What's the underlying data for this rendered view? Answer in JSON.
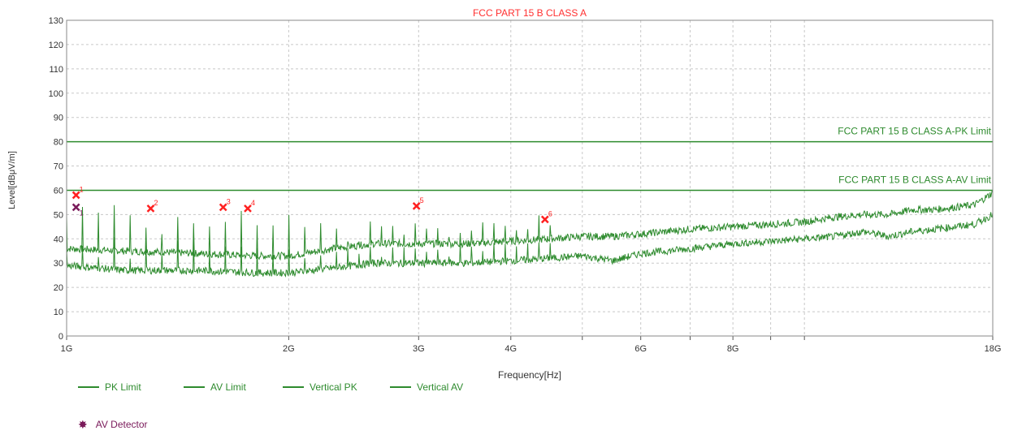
{
  "chart_data": {
    "type": "line",
    "title": "FCC PART 15 B CLASS A",
    "xlabel": "Frequency[Hz]",
    "ylabel": "Level[dBμV/m]",
    "x_scale": "log",
    "xlim_hz": [
      1000000000,
      18000000000
    ],
    "ylim": [
      0,
      130
    ],
    "yticks": [
      0,
      10,
      20,
      30,
      40,
      50,
      60,
      70,
      80,
      90,
      100,
      110,
      120,
      130
    ],
    "xticks": [
      {
        "value_hz": 1000000000,
        "label": "1G"
      },
      {
        "value_hz": 2000000000,
        "label": "2G"
      },
      {
        "value_hz": 3000000000,
        "label": "3G"
      },
      {
        "value_hz": 4000000000,
        "label": "4G"
      },
      {
        "value_hz": 6000000000,
        "label": "6G"
      },
      {
        "value_hz": 8000000000,
        "label": "8G"
      },
      {
        "value_hz": 18000000000,
        "label": "18G"
      }
    ],
    "minor_gridlines_hz": [
      5000000000,
      7000000000,
      9000000000,
      10000000000
    ],
    "grid": true,
    "limits": [
      {
        "name": "PK Limit",
        "value": 80,
        "label": "FCC PART 15 B CLASS A-PK Limit"
      },
      {
        "name": "AV Limit",
        "value": 60,
        "label": "FCC PART 15 B CLASS A-AV Limit"
      }
    ],
    "series": [
      {
        "name": "Vertical PK",
        "x_ghz": [
          1.0,
          1.2,
          1.5,
          1.8,
          2.0,
          2.3,
          2.6,
          3.0,
          3.5,
          4.0,
          4.5,
          5.0,
          5.5,
          6.0,
          7.0,
          8.0,
          9.0,
          10.0,
          11.0,
          12.0,
          13.0,
          14.0,
          15.0,
          16.0,
          17.0,
          18.0
        ],
        "values": [
          36,
          35,
          34,
          33,
          33,
          36,
          38,
          38,
          38,
          39,
          40,
          41,
          41,
          42,
          44,
          45,
          46,
          47,
          49,
          50,
          50,
          52,
          52,
          53,
          54,
          59
        ]
      },
      {
        "name": "Vertical AV",
        "x_ghz": [
          1.0,
          1.2,
          1.5,
          1.8,
          2.0,
          2.3,
          2.6,
          3.0,
          3.5,
          4.0,
          4.5,
          5.0,
          5.5,
          6.0,
          7.0,
          8.0,
          9.0,
          10.0,
          11.0,
          12.0,
          13.0,
          14.0,
          15.0,
          16.0,
          17.0,
          18.0
        ],
        "values": [
          29,
          27,
          27,
          26,
          26,
          28,
          30,
          30,
          30,
          31,
          32,
          33,
          31,
          34,
          36,
          38,
          39,
          40,
          41,
          43,
          41,
          43,
          44,
          45,
          46,
          50
        ]
      }
    ],
    "markers": [
      {
        "label": "1",
        "freq_ghz": 1.03,
        "level": 58,
        "detector": "PK"
      },
      {
        "label": "2",
        "freq_ghz": 1.3,
        "level": 52.5,
        "detector": "PK"
      },
      {
        "label": "3",
        "freq_ghz": 1.63,
        "level": 53,
        "detector": "PK"
      },
      {
        "label": "4",
        "freq_ghz": 1.76,
        "level": 52.5,
        "detector": "PK"
      },
      {
        "label": "5",
        "freq_ghz": 2.98,
        "level": 53.5,
        "detector": "PK"
      },
      {
        "label": "6",
        "freq_ghz": 4.45,
        "level": 48,
        "detector": "PK"
      },
      {
        "label": "1",
        "freq_ghz": 1.03,
        "level": 53,
        "detector": "AV"
      }
    ],
    "legend": {
      "placement": "bottom-left",
      "entries": [
        "PK Limit",
        "AV Limit",
        "Vertical PK",
        "Vertical AV"
      ],
      "detector_entry": "AV Detector"
    }
  },
  "colors": {
    "trace": "#2e8b2e",
    "title": "#ff3030",
    "marker_pk": "#ff2020",
    "marker_av": "#7a1a5a",
    "grid": "#c8c8c8"
  }
}
